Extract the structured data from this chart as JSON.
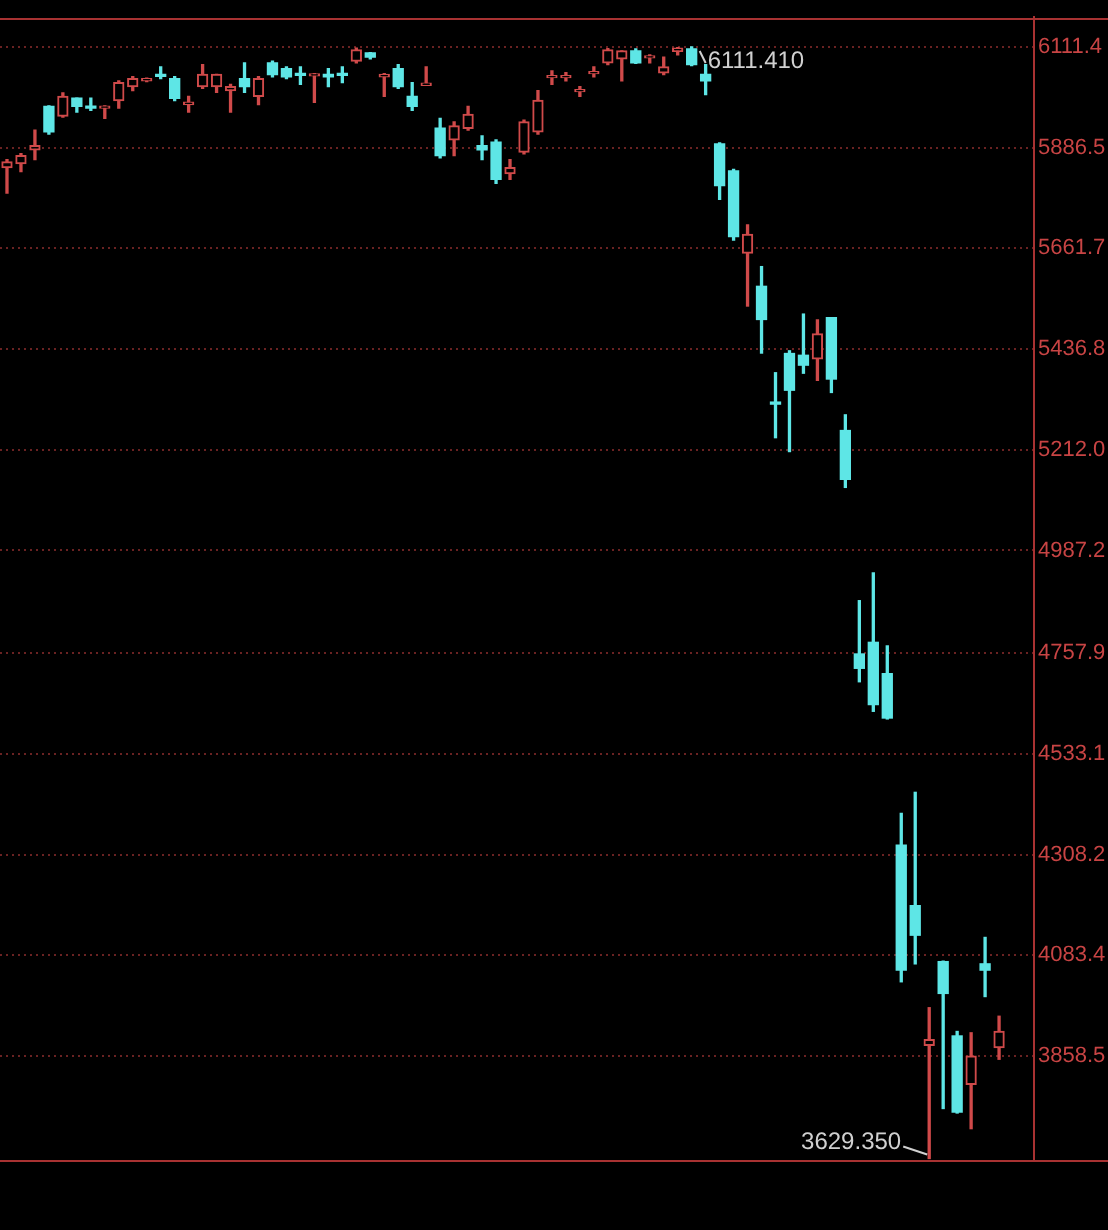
{
  "chart_data": {
    "type": "candlestick",
    "categories": [
      null,
      null,
      null,
      null,
      null,
      null,
      null,
      null,
      null,
      null,
      null,
      null,
      null,
      null,
      null,
      null,
      null,
      null,
      null,
      null,
      null,
      null,
      null,
      null,
      null,
      null,
      null,
      null,
      null,
      null,
      null,
      null,
      null,
      null,
      null,
      null,
      null,
      null,
      null,
      null,
      null,
      null,
      null,
      null,
      null,
      null,
      null,
      null,
      null,
      null,
      null,
      null,
      null,
      null,
      null,
      null,
      null,
      null,
      null,
      null,
      null,
      null,
      null,
      null,
      null,
      null,
      null,
      null,
      null,
      null,
      null,
      null,
      null,
      null
    ],
    "ohlc": [
      [
        5842,
        5860,
        5785,
        5855
      ],
      [
        5851,
        5873,
        5833,
        5869
      ],
      [
        5882,
        5926,
        5860,
        5891
      ],
      [
        5979,
        5980,
        5917,
        5922
      ],
      [
        5957,
        6009,
        5955,
        6001
      ],
      [
        5997,
        5997,
        5966,
        5979
      ],
      [
        5979,
        5997,
        5970,
        5975
      ],
      [
        5975,
        5980,
        5952,
        5979
      ],
      [
        5992,
        6036,
        5975,
        6032
      ],
      [
        6023,
        6045,
        6014,
        6041
      ],
      [
        6036,
        6042,
        6034,
        6041
      ],
      [
        6050,
        6067,
        6041,
        6046
      ],
      [
        6041,
        6045,
        5992,
        5997
      ],
      [
        5983,
        6001,
        5966,
        5988
      ],
      [
        6023,
        6072,
        6019,
        6050
      ],
      [
        6023,
        6050,
        6010,
        6050
      ],
      [
        6014,
        6028,
        5966,
        6023
      ],
      [
        6041,
        6076,
        6010,
        6023
      ],
      [
        6001,
        6045,
        5983,
        6041
      ],
      [
        6076,
        6080,
        6045,
        6050
      ],
      [
        6063,
        6067,
        6041,
        6045
      ],
      [
        6052,
        6067,
        6028,
        6048
      ],
      [
        6047,
        6052,
        5988,
        6051
      ],
      [
        6050,
        6063,
        6023,
        6045
      ],
      [
        6052,
        6067,
        6032,
        6048
      ],
      [
        6080,
        6109,
        6076,
        6105
      ],
      [
        6098,
        6099,
        6085,
        6089
      ],
      [
        6045,
        6052,
        6001,
        6050
      ],
      [
        6063,
        6072,
        6019,
        6023
      ],
      [
        6001,
        6032,
        5970,
        5979
      ],
      [
        6026,
        6067,
        6026,
        6030
      ],
      [
        5930,
        5952,
        5864,
        5869
      ],
      [
        5904,
        5944,
        5869,
        5935
      ],
      [
        5930,
        5979,
        5926,
        5961
      ],
      [
        5891,
        5913,
        5860,
        5882
      ],
      [
        5899,
        5904,
        5807,
        5816
      ],
      [
        5829,
        5860,
        5816,
        5842
      ],
      [
        5877,
        5948,
        5873,
        5944
      ],
      [
        5922,
        6014,
        5917,
        5992
      ],
      [
        6043,
        6058,
        6028,
        6047
      ],
      [
        6043,
        6054,
        6036,
        6047
      ],
      [
        6012,
        6023,
        6001,
        6016
      ],
      [
        6052,
        6067,
        6045,
        6056
      ],
      [
        6076,
        6108,
        6072,
        6105
      ],
      [
        6085,
        6103,
        6036,
        6103
      ],
      [
        6103,
        6107,
        6075,
        6076
      ],
      [
        6087,
        6094,
        6076,
        6091
      ],
      [
        6054,
        6089,
        6050,
        6067
      ],
      [
        6102,
        6110,
        6094,
        6109
      ],
      [
        6107,
        6111.41,
        6070,
        6072
      ],
      [
        6050,
        6072,
        6005,
        6036
      ],
      [
        5895,
        5897,
        5771,
        5802
      ],
      [
        5835,
        5838,
        5680,
        5688
      ],
      [
        5651,
        5714,
        5533,
        5693
      ],
      [
        5577,
        5621,
        5428,
        5503
      ],
      [
        5318,
        5384,
        5239,
        5314
      ],
      [
        5427,
        5433,
        5208,
        5345
      ],
      [
        5423,
        5515,
        5383,
        5401
      ],
      [
        5415,
        5502,
        5367,
        5471
      ],
      [
        5507,
        5507,
        5340,
        5370
      ],
      [
        5255,
        5290,
        5128,
        5146
      ],
      [
        4756,
        4875,
        4694,
        4724
      ],
      [
        4782,
        4937,
        4628,
        4643
      ],
      [
        4712,
        4774,
        4611,
        4613
      ],
      [
        4329,
        4400,
        4024,
        4050
      ],
      [
        4194,
        4447,
        4064,
        4128
      ],
      [
        3882,
        3966,
        3629.35,
        3895
      ],
      [
        4069,
        4070,
        3741,
        3998
      ],
      [
        3903,
        3913,
        3731,
        3733
      ],
      [
        3795,
        3910,
        3696,
        3858
      ],
      [
        4064,
        4123,
        3991,
        4050
      ],
      [
        3877,
        3947,
        3851,
        3913
      ],
      null,
      null
    ],
    "colors": [
      "#d04a4a",
      "#d04a4a",
      "#d04a4a",
      "#5ee6e6",
      "#d04a4a",
      "#5ee6e6",
      "#5ee6e6",
      "#d04a4a",
      "#d04a4a",
      "#d04a4a",
      "#d04a4a",
      "#5ee6e6",
      "#5ee6e6",
      "#d04a4a",
      "#d04a4a",
      "#d04a4a",
      "#d04a4a",
      "#5ee6e6",
      "#d04a4a",
      "#5ee6e6",
      "#5ee6e6",
      "#5ee6e6",
      "#d04a4a",
      "#5ee6e6",
      "#5ee6e6",
      "#d04a4a",
      "#5ee6e6",
      "#d04a4a",
      "#5ee6e6",
      "#5ee6e6",
      "#d04a4a",
      "#5ee6e6",
      "#d04a4a",
      "#d04a4a",
      "#5ee6e6",
      "#5ee6e6",
      "#d04a4a",
      "#d04a4a",
      "#d04a4a",
      "#d04a4a",
      "#d04a4a",
      "#d04a4a",
      "#d04a4a",
      "#d04a4a",
      "#d04a4a",
      "#5ee6e6",
      "#d04a4a",
      "#d04a4a",
      "#d04a4a",
      "#5ee6e6",
      "#5ee6e6",
      "#5ee6e6",
      "#5ee6e6",
      "#d04a4a",
      "#5ee6e6",
      "#5ee6e6",
      "#5ee6e6",
      "#5ee6e6",
      "#d04a4a",
      "#5ee6e6",
      "#5ee6e6",
      "#5ee6e6",
      "#5ee6e6",
      "#5ee6e6",
      "#5ee6e6",
      "#5ee6e6",
      "#d04a4a",
      "#5ee6e6",
      "#5ee6e6",
      "#d04a4a",
      "#5ee6e6",
      "#d04a4a",
      null,
      null
    ],
    "ylim": [
      3626,
      6178
    ],
    "yticks": [
      6111.4,
      5886.5,
      5661.7,
      5436.8,
      {
        "value": 5212,
        "label": "5212.0"
      },
      4987.2,
      4757.9,
      4533.1,
      4308.2,
      4083.4,
      3858.5
    ],
    "grid": "y",
    "annotations": [
      "6111.410",
      "3629.350"
    ]
  }
}
